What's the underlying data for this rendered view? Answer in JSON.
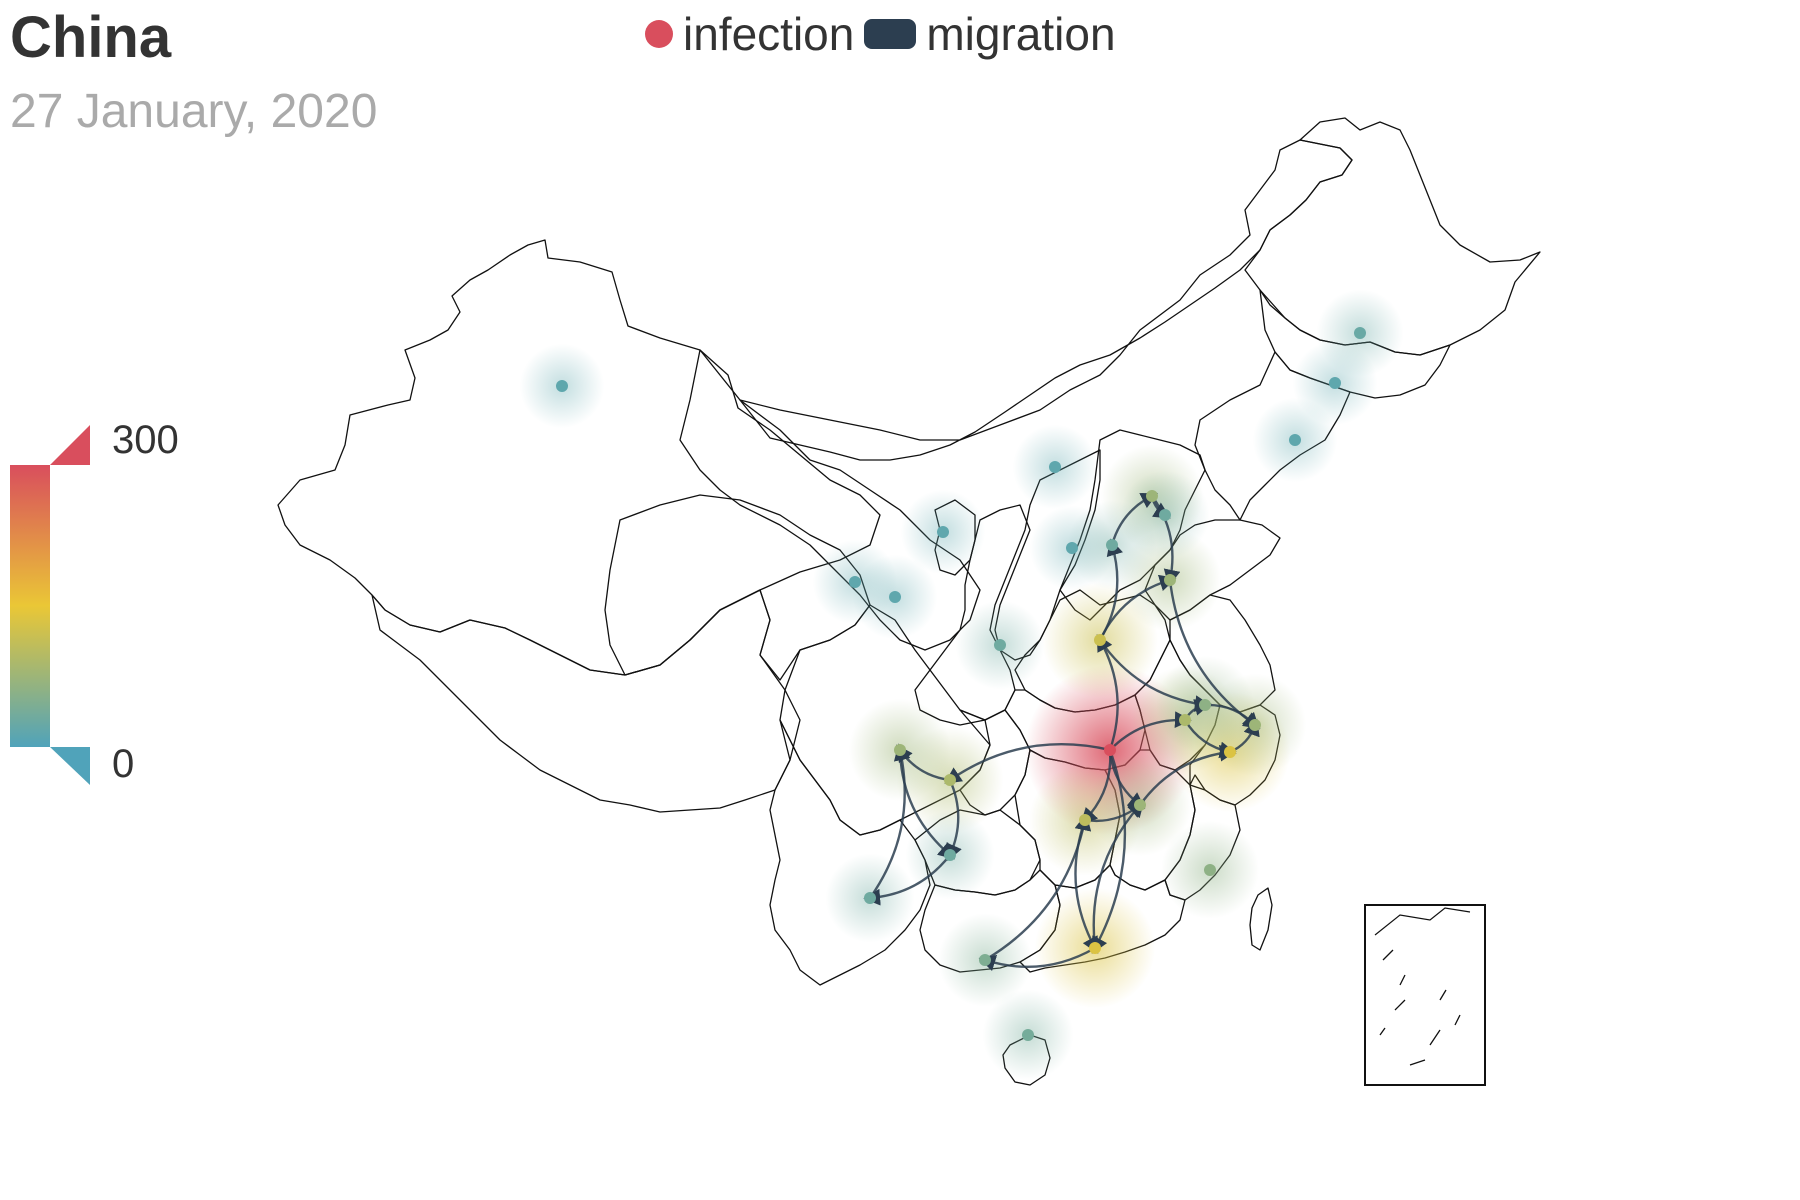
{
  "title": "China",
  "subtitle": "27 January, 2020",
  "legend": {
    "items": [
      {
        "label": "infection",
        "color": "#d94e5d",
        "icon": "circle-icon"
      },
      {
        "label": "migration",
        "color": "#2c3e50",
        "icon": "rounded-rect-icon"
      }
    ]
  },
  "visual_map": {
    "max_label": "300",
    "min_label": "0",
    "min": 0,
    "max": 300,
    "colors": [
      "#50a3ba",
      "#eac736",
      "#d94e5d"
    ]
  },
  "infection_points": [
    {
      "region": "Hubei",
      "level": 1.0
    },
    {
      "region": "Guangdong",
      "level": 0.45
    },
    {
      "region": "Zhejiang",
      "level": 0.45
    },
    {
      "region": "Henan",
      "level": 0.4
    },
    {
      "region": "Hunan",
      "level": 0.35
    },
    {
      "region": "Chongqing",
      "level": 0.3
    },
    {
      "region": "Anhui",
      "level": 0.3
    },
    {
      "region": "Jiangxi",
      "level": 0.25
    },
    {
      "region": "Sichuan",
      "level": 0.25
    },
    {
      "region": "Shandong",
      "level": 0.25
    },
    {
      "region": "Beijing",
      "level": 0.25
    },
    {
      "region": "Shanghai",
      "level": 0.25
    },
    {
      "region": "Jiangsu",
      "level": 0.2
    },
    {
      "region": "Fujian",
      "level": 0.2
    },
    {
      "region": "Guangxi",
      "level": 0.15
    },
    {
      "region": "Hainan",
      "level": 0.12
    },
    {
      "region": "Guizhou",
      "level": 0.1
    },
    {
      "region": "Yunnan",
      "level": 0.1
    },
    {
      "region": "Heilongjiang",
      "level": 0.08
    },
    {
      "region": "Jilin",
      "level": 0.05
    },
    {
      "region": "Liaoning",
      "level": 0.05
    },
    {
      "region": "Shanxi",
      "level": 0.05
    },
    {
      "region": "Shaanxi",
      "level": 0.1
    },
    {
      "region": "Gansu",
      "level": 0.05
    },
    {
      "region": "Ningxia",
      "level": 0.05
    },
    {
      "region": "Qinghai",
      "level": 0.05
    },
    {
      "region": "Inner Mongolia",
      "level": 0.05
    },
    {
      "region": "Xinjiang",
      "level": 0.05
    },
    {
      "region": "Hebei",
      "level": 0.1
    },
    {
      "region": "Tianjin",
      "level": 0.1
    }
  ],
  "migration_routes": [
    [
      "Hubei",
      "Henan"
    ],
    [
      "Hubei",
      "Hunan"
    ],
    [
      "Hubei",
      "Chongqing"
    ],
    [
      "Hubei",
      "Anhui"
    ],
    [
      "Hubei",
      "Jiangxi"
    ],
    [
      "Hubei",
      "Guangdong"
    ],
    [
      "Henan",
      "Hebei"
    ],
    [
      "Henan",
      "Shandong"
    ],
    [
      "Henan",
      "Jiangsu"
    ],
    [
      "Hebei",
      "Beijing"
    ],
    [
      "Beijing",
      "Tianjin"
    ],
    [
      "Beijing",
      "Shandong"
    ],
    [
      "Shandong",
      "Shanghai"
    ],
    [
      "Jiangsu",
      "Shanghai"
    ],
    [
      "Zhejiang",
      "Shanghai"
    ],
    [
      "Anhui",
      "Jiangsu"
    ],
    [
      "Anhui",
      "Zhejiang"
    ],
    [
      "Jiangxi",
      "Zhejiang"
    ],
    [
      "Hunan",
      "Guangdong"
    ],
    [
      "Guangdong",
      "Guangxi"
    ],
    [
      "Guangxi",
      "Hunan"
    ],
    [
      "Chongqing",
      "Sichuan"
    ],
    [
      "Sichuan",
      "Guizhou"
    ],
    [
      "Guizhou",
      "Yunnan"
    ],
    [
      "Yunnan",
      "Sichuan"
    ],
    [
      "Chongqing",
      "Guizhou"
    ],
    [
      "Hunan",
      "Jiangxi"
    ],
    [
      "Guangdong",
      "Jiangxi"
    ]
  ]
}
